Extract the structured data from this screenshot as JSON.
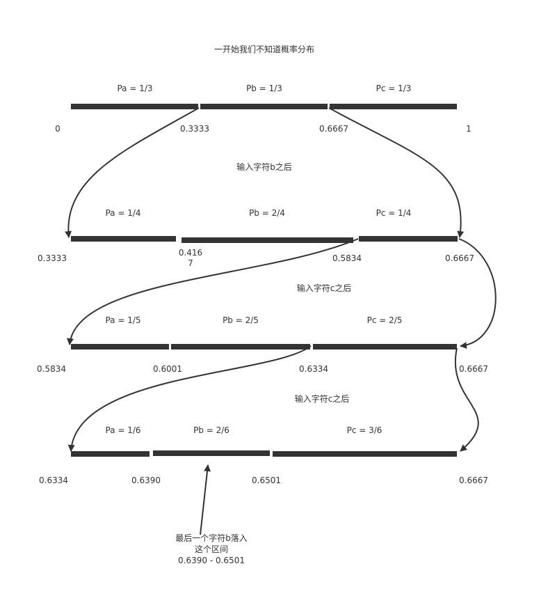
{
  "title": "一开始我们不知道概率分布",
  "stages": [
    {
      "labels": [
        "Pa = 1/3",
        "Pb = 1/3",
        "Pc = 1/3"
      ],
      "ticks": [
        "0",
        "0.3333",
        "0.6667",
        "1"
      ]
    },
    {
      "caption": "输入字符b之后",
      "labels": [
        "Pa = 1/4",
        "Pb = 2/4",
        "Pc = 1/4"
      ],
      "ticks": [
        "0.3333",
        "0.416\n7",
        "0.5834",
        "0.6667"
      ]
    },
    {
      "caption": "输入字符c之后",
      "labels": [
        "Pa = 1/5",
        "Pb = 2/5",
        "Pc = 2/5"
      ],
      "ticks": [
        "0.5834",
        "0.6001",
        "0.6334",
        "0.6667"
      ]
    },
    {
      "caption": "输入字符c之后",
      "labels": [
        "Pa = 1/6",
        "Pb = 2/6",
        "Pc = 3/6"
      ],
      "ticks": [
        "0.6334",
        "0.6390",
        "0.6501",
        "0.6667"
      ]
    }
  ],
  "final_note": {
    "line1": "最后一个字符b落入",
    "line2": "这个区间",
    "line3": "0.6390 - 0.6501"
  },
  "colors": {
    "line": "#333333",
    "text": "#333333",
    "background": "#ffffff"
  }
}
